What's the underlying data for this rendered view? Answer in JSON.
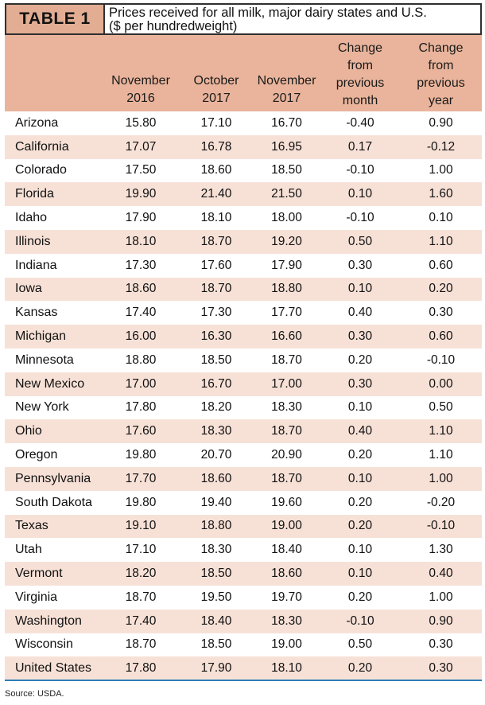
{
  "table_label": "TABLE 1",
  "title_line1": "Prices received for all milk, major dairy states and U.S.",
  "title_line2": "($ per hundredweight)",
  "headers": {
    "nov16": [
      "November",
      "2016"
    ],
    "oct17": [
      "October",
      "2017"
    ],
    "nov17": [
      "November",
      "2017"
    ],
    "chg_month": [
      "Change",
      "from",
      "previous",
      "month"
    ],
    "chg_year": [
      "Change",
      "from",
      "previous",
      "year"
    ]
  },
  "rows": [
    [
      "Arizona",
      "15.80",
      "17.10",
      "16.70",
      "-0.40",
      "0.90"
    ],
    [
      "California",
      "17.07",
      "16.78",
      "16.95",
      "0.17",
      "-0.12"
    ],
    [
      "Colorado",
      "17.50",
      "18.60",
      "18.50",
      "-0.10",
      "1.00"
    ],
    [
      "Florida",
      "19.90",
      "21.40",
      "21.50",
      "0.10",
      "1.60"
    ],
    [
      "Idaho",
      "17.90",
      "18.10",
      "18.00",
      "-0.10",
      "0.10"
    ],
    [
      "Illinois",
      "18.10",
      "18.70",
      "19.20",
      "0.50",
      "1.10"
    ],
    [
      "Indiana",
      "17.30",
      "17.60",
      "17.90",
      "0.30",
      "0.60"
    ],
    [
      "Iowa",
      "18.60",
      "18.70",
      "18.80",
      "0.10",
      "0.20"
    ],
    [
      "Kansas",
      "17.40",
      "17.30",
      "17.70",
      "0.40",
      "0.30"
    ],
    [
      "Michigan",
      "16.00",
      "16.30",
      "16.60",
      "0.30",
      "0.60"
    ],
    [
      "Minnesota",
      "18.80",
      "18.50",
      "18.70",
      "0.20",
      "-0.10"
    ],
    [
      "New Mexico",
      "17.00",
      "16.70",
      "17.00",
      "0.30",
      "0.00"
    ],
    [
      "New York",
      "17.80",
      "18.20",
      "18.30",
      "0.10",
      "0.50"
    ],
    [
      "Ohio",
      "17.60",
      "18.30",
      "18.70",
      "0.40",
      "1.10"
    ],
    [
      "Oregon",
      "19.80",
      "20.70",
      "20.90",
      "0.20",
      "1.10"
    ],
    [
      "Pennsylvania",
      "17.70",
      "18.60",
      "18.70",
      "0.10",
      "1.00"
    ],
    [
      "South Dakota",
      "19.80",
      "19.40",
      "19.60",
      "0.20",
      "-0.20"
    ],
    [
      "Texas",
      "19.10",
      "18.80",
      "19.00",
      "0.20",
      "-0.10"
    ],
    [
      "Utah",
      "17.10",
      "18.30",
      "18.40",
      "0.10",
      "1.30"
    ],
    [
      "Vermont",
      "18.20",
      "18.50",
      "18.60",
      "0.10",
      "0.40"
    ],
    [
      "Virginia",
      "18.70",
      "19.50",
      "19.70",
      "0.20",
      "1.00"
    ],
    [
      "Washington",
      "17.40",
      "18.40",
      "18.30",
      "-0.10",
      "0.90"
    ],
    [
      "Wisconsin",
      "18.70",
      "18.50",
      "19.00",
      "0.50",
      "0.30"
    ],
    [
      "United States",
      "17.80",
      "17.90",
      "18.10",
      "0.20",
      "0.30"
    ]
  ],
  "source": "Source: USDA."
}
